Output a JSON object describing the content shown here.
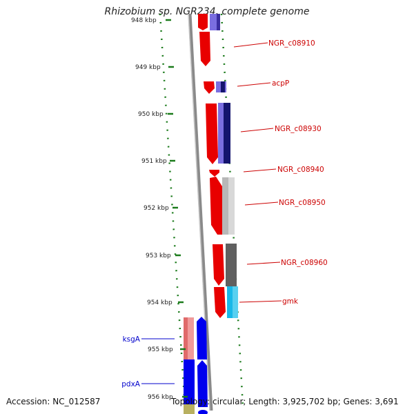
{
  "title": "Rhizobium sp. NGR234, complete genome",
  "accession": "Accession: NC_012587",
  "topology": "Topology: circular; Length: 3,925,702 bp; Genes: 3,691",
  "colors": {
    "backbone": "#8a8a8a",
    "tick": "#1a7a1a",
    "label_red": "#cc0000",
    "label_blue": "#0000cc"
  },
  "axis": {
    "ticks": [
      "948 kbp",
      "949 kbp",
      "950 kbp",
      "951 kbp",
      "952 kbp",
      "953 kbp",
      "954 kbp",
      "955 kbp",
      "956 kbp"
    ]
  },
  "genes": [
    {
      "name": "NGR_c08910",
      "color": "#cc0000"
    },
    {
      "name": "acpP",
      "color": "#cc0000"
    },
    {
      "name": "NGR_c08930",
      "color": "#cc0000"
    },
    {
      "name": "NGR_c08940",
      "color": "#cc0000"
    },
    {
      "name": "NGR_c08950",
      "color": "#cc0000"
    },
    {
      "name": "NGR_c08960",
      "color": "#cc0000"
    },
    {
      "name": "gmk",
      "color": "#cc0000"
    },
    {
      "name": "ksgA",
      "color": "#0000cc"
    },
    {
      "name": "pdxA",
      "color": "#0000cc"
    }
  ]
}
